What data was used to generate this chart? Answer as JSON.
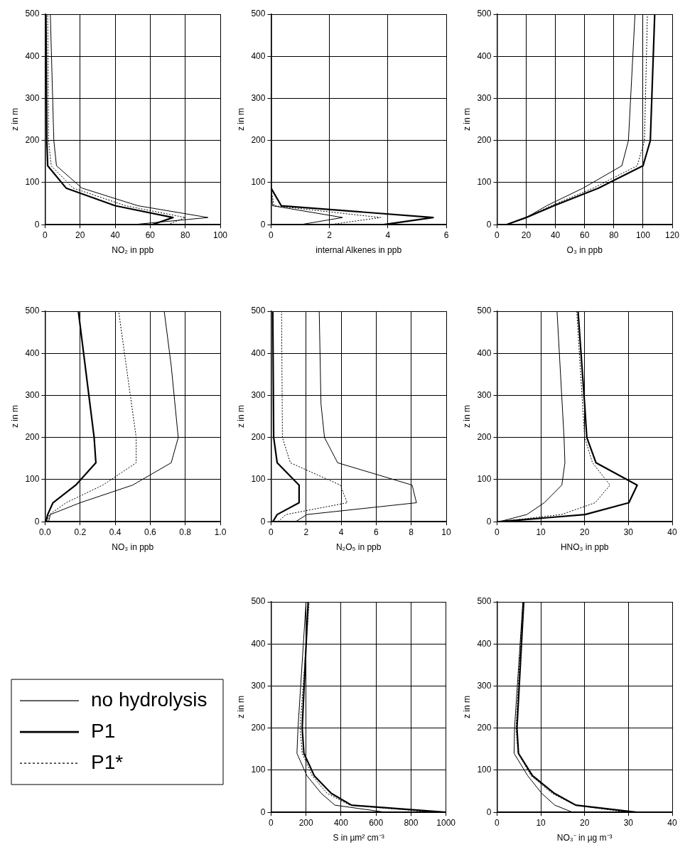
{
  "chart_data": [
    {
      "type": "line",
      "xlabel": "NO₂ in ppb",
      "ylabel": "z in m",
      "xlim": [
        0,
        100
      ],
      "xticks": [
        0,
        20,
        40,
        60,
        80,
        100
      ],
      "ylim": [
        0,
        500
      ],
      "yticks": [
        0,
        100,
        200,
        300,
        400,
        500
      ],
      "grid": true,
      "series": [
        {
          "color": "#000000",
          "line_style": "solid",
          "x": [
            50,
            93,
            53,
            21,
            6.5,
            5,
            3
          ],
          "values": [
            0,
            17,
            45,
            87,
            140,
            200,
            500
          ]
        },
        {
          "color": "#000000",
          "line_style": "solid",
          "x": [
            61,
            73,
            40,
            12,
            1.5,
            1,
            0.5
          ],
          "values": [
            0,
            17,
            45,
            87,
            140,
            200,
            500
          ]
        },
        {
          "color": "#000000",
          "line_style": "dotted",
          "x": [
            70,
            80,
            46,
            16,
            3.5,
            2,
            1.5
          ],
          "values": [
            0,
            17,
            45,
            87,
            140,
            200,
            500
          ]
        }
      ]
    },
    {
      "type": "line",
      "xlabel": "internal Alkenes in ppb",
      "ylabel": "z in m",
      "xlim": [
        0,
        6
      ],
      "xticks": [
        0,
        2,
        4,
        6
      ],
      "ylim": [
        0,
        500
      ],
      "yticks": [
        0,
        100,
        200,
        300,
        400,
        500
      ],
      "grid": true,
      "series": [
        {
          "color": "#000000",
          "line_style": "solid",
          "x": [
            1.0,
            2.45,
            0.05,
            0,
            0
          ],
          "values": [
            0,
            17,
            45,
            87,
            500
          ]
        },
        {
          "color": "#000000",
          "line_style": "solid",
          "x": [
            3.85,
            5.55,
            0.35,
            0,
            0
          ],
          "values": [
            0,
            17,
            45,
            87,
            500
          ]
        },
        {
          "color": "#000000",
          "line_style": "dotted",
          "x": [
            2.0,
            3.75,
            0.1,
            0,
            0
          ],
          "values": [
            0,
            17,
            45,
            87,
            500
          ]
        }
      ]
    },
    {
      "type": "line",
      "xlabel": "O₃ in ppb",
      "ylabel": "z in m",
      "xlim": [
        0,
        120
      ],
      "xticks": [
        0,
        20,
        40,
        60,
        80,
        100,
        120
      ],
      "ylim": [
        0,
        500
      ],
      "yticks": [
        0,
        100,
        200,
        300,
        400,
        500
      ],
      "grid": true,
      "series": [
        {
          "color": "#000000",
          "line_style": "solid",
          "x": [
            6.3,
            20,
            34,
            59,
            85.5,
            90,
            94.5
          ],
          "values": [
            0,
            17,
            45,
            87,
            140,
            200,
            500
          ]
        },
        {
          "color": "#000000",
          "line_style": "solid",
          "x": [
            6.3,
            20,
            39,
            69.5,
            100,
            105,
            108
          ],
          "values": [
            0,
            17,
            45,
            87,
            140,
            200,
            500
          ]
        },
        {
          "color": "#000000",
          "line_style": "dotted",
          "x": [
            6.3,
            20,
            37,
            66,
            96,
            101,
            103
          ],
          "values": [
            0,
            17,
            45,
            87,
            140,
            200,
            500
          ]
        }
      ]
    },
    {
      "type": "line",
      "xlabel": "NO₃ in ppb",
      "ylabel": "z in m",
      "xlim": [
        0,
        1
      ],
      "xticks": [
        {
          "value": 0,
          "label": "0.0"
        },
        0.2,
        0.4,
        0.6,
        0.8,
        {
          "value": 1,
          "label": "1.0"
        }
      ],
      "ylim": [
        0,
        500
      ],
      "yticks": [
        0,
        100,
        200,
        300,
        400,
        500
      ],
      "grid": true,
      "series": [
        {
          "color": "#000000",
          "line_style": "solid",
          "x": [
            0.02,
            0.03,
            0.2,
            0.5,
            0.72,
            0.76,
            0.72,
            0.68
          ],
          "values": [
            0,
            17,
            45,
            87,
            140,
            200,
            370,
            500
          ]
        },
        {
          "color": "#000000",
          "line_style": "solid",
          "x": [
            0.005,
            0.015,
            0.045,
            0.175,
            0.29,
            0.28,
            0.19
          ],
          "values": [
            0,
            17,
            45,
            87,
            140,
            200,
            500
          ]
        },
        {
          "color": "#000000",
          "line_style": "dotted",
          "x": [
            0.01,
            0.025,
            0.12,
            0.33,
            0.52,
            0.52,
            0.49,
            0.42
          ],
          "values": [
            0,
            17,
            45,
            87,
            140,
            200,
            290,
            500
          ]
        }
      ]
    },
    {
      "type": "line",
      "xlabel": "N₂O₅ in ppb",
      "ylabel": "z in m",
      "xlim": [
        0,
        10
      ],
      "xticks": [
        0,
        2,
        4,
        6,
        8,
        10
      ],
      "ylim": [
        0,
        500
      ],
      "yticks": [
        0,
        100,
        200,
        300,
        400,
        500
      ],
      "grid": true,
      "series": [
        {
          "color": "#000000",
          "line_style": "solid",
          "x": [
            1.4,
            2.05,
            8.3,
            8.05,
            3.8,
            3.05,
            2.85,
            2.75
          ],
          "values": [
            0,
            17,
            45,
            87,
            140,
            200,
            280,
            500
          ]
        },
        {
          "color": "#000000",
          "line_style": "solid",
          "x": [
            0.1,
            0.35,
            1.6,
            1.6,
            0.35,
            0.15,
            0.1
          ],
          "values": [
            0,
            17,
            45,
            87,
            140,
            200,
            500
          ]
        },
        {
          "color": "#000000",
          "line_style": "dotted",
          "x": [
            0.4,
            0.85,
            4.35,
            3.95,
            1.1,
            0.65,
            0.6
          ],
          "values": [
            0,
            17,
            45,
            87,
            140,
            200,
            500
          ]
        }
      ]
    },
    {
      "type": "line",
      "xlabel": "HNO₃ in ppb",
      "ylabel": "z in m",
      "xlim": [
        0,
        40
      ],
      "xticks": [
        0,
        10,
        20,
        30,
        40
      ],
      "ylim": [
        0,
        500
      ],
      "yticks": [
        0,
        100,
        200,
        300,
        400,
        500
      ],
      "grid": true,
      "series": [
        {
          "color": "#000000",
          "line_style": "solid",
          "x": [
            0.5,
            6.8,
            10.8,
            14.8,
            15.5,
            15.3,
            13.7
          ],
          "values": [
            0,
            17,
            45,
            87,
            140,
            200,
            500
          ]
        },
        {
          "color": "#000000",
          "line_style": "solid",
          "x": [
            0.5,
            20.1,
            30.1,
            32,
            22.6,
            20.5,
            20,
            18.5
          ],
          "values": [
            0,
            17,
            45,
            87,
            140,
            200,
            280,
            500
          ]
        },
        {
          "color": "#000000",
          "line_style": "dotted",
          "x": [
            0.5,
            14.7,
            22.4,
            25.8,
            21.8,
            20,
            18.2
          ],
          "values": [
            0,
            17,
            45,
            87,
            140,
            200,
            500
          ]
        }
      ]
    },
    {
      "type": "line",
      "xlabel": "S in µm² cm⁻³",
      "ylabel": "z in m",
      "xlim": [
        0,
        1000
      ],
      "xticks": [
        0,
        200,
        400,
        600,
        800,
        1000
      ],
      "ylim": [
        0,
        500
      ],
      "yticks": [
        0,
        100,
        200,
        300,
        400,
        500
      ],
      "grid": true,
      "legend": "left",
      "series": [
        {
          "name": "no hydrolysis",
          "color": "#000000",
          "line_style": "solid",
          "x": [
            658,
            365,
            287,
            205,
            148,
            154,
            200
          ],
          "values": [
            0,
            17,
            45,
            87,
            140,
            200,
            500
          ]
        },
        {
          "name": "P1",
          "color": "#000000",
          "line_style": "solid",
          "x": [
            1000,
            460,
            344,
            247,
            188,
            178,
            212
          ],
          "values": [
            0,
            17,
            45,
            87,
            140,
            200,
            500
          ]
        },
        {
          "name": "P1*",
          "color": "#000000",
          "line_style": "dotted",
          "x": [
            935,
            450,
            321,
            235,
            178,
            166,
            218
          ],
          "values": [
            0,
            17,
            45,
            87,
            140,
            200,
            500
          ]
        }
      ]
    },
    {
      "type": "line",
      "xlabel": "NO₃⁻ in µg m⁻³",
      "ylabel": "z in m",
      "xlim": [
        0,
        40
      ],
      "xticks": [
        0,
        10,
        20,
        30,
        40
      ],
      "ylim": [
        0,
        500
      ],
      "yticks": [
        0,
        100,
        200,
        300,
        400,
        500
      ],
      "grid": true,
      "series": [
        {
          "color": "#000000",
          "line_style": "solid",
          "x": [
            17.3,
            13.2,
            10.2,
            7,
            3.9,
            4,
            5.9
          ],
          "values": [
            0,
            17,
            45,
            87,
            140,
            200,
            500
          ]
        },
        {
          "color": "#000000",
          "line_style": "solid",
          "x": [
            31.9,
            18,
            13.1,
            8.1,
            4.9,
            4.55,
            6.1
          ],
          "values": [
            0,
            17,
            45,
            87,
            140,
            200,
            500
          ]
        },
        {
          "color": "#000000",
          "line_style": "dotted",
          "x": [
            29.9,
            17.8,
            12.6,
            7.8,
            4.8,
            4.35,
            5.9
          ],
          "values": [
            0,
            17,
            45,
            87,
            140,
            200,
            500
          ]
        }
      ]
    }
  ]
}
